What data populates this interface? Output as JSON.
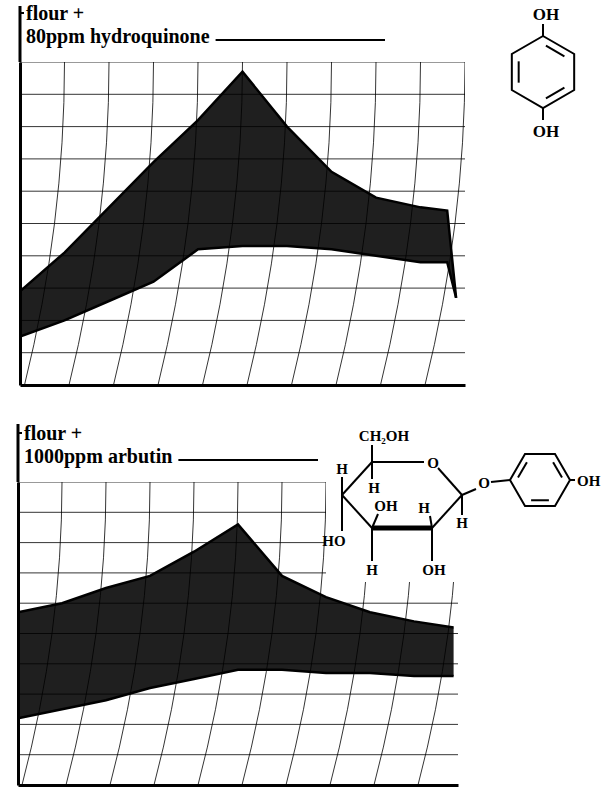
{
  "chart_data": [
    {
      "type": "band",
      "title": "flour + 80ppm hydroquinone",
      "x": [
        0,
        1,
        2,
        3,
        4,
        5,
        6,
        7,
        8,
        9,
        9.6,
        9.8
      ],
      "series": [
        {
          "color": "#000000",
          "values": [
            29,
            41,
            55,
            69,
            82,
            97,
            80,
            66,
            58,
            55,
            54,
            27
          ]
        },
        {
          "color": "#000000",
          "values": [
            15,
            20,
            26,
            32,
            42,
            43,
            43,
            42,
            40,
            38,
            38,
            27
          ]
        }
      ],
      "xlim": [
        0,
        10
      ],
      "ylim": [
        0,
        100
      ],
      "xticks": [
        0,
        1,
        2,
        3,
        4,
        5,
        6,
        7,
        8,
        9,
        10
      ],
      "yticks": [
        0,
        10,
        20,
        30,
        40,
        50,
        60,
        70,
        80,
        90,
        100
      ],
      "grid": true,
      "tick_labels": false,
      "annotations": [
        "OH",
        "OH"
      ]
    },
    {
      "type": "band",
      "title": "flour + 1000ppm arbutin",
      "x": [
        0,
        1,
        2,
        3,
        4,
        5,
        6,
        7,
        8,
        9,
        9.9
      ],
      "series": [
        {
          "color": "#000000",
          "values": [
            57,
            60,
            65,
            69,
            77,
            86,
            69,
            62,
            57,
            54,
            52
          ]
        },
        {
          "color": "#000000",
          "values": [
            22,
            25,
            28,
            32,
            35,
            38,
            38,
            37,
            37,
            36,
            36
          ]
        }
      ],
      "xlim": [
        0,
        10
      ],
      "ylim": [
        0,
        100
      ],
      "xticks": [
        0,
        1,
        2,
        3,
        4,
        5,
        6,
        7,
        8,
        9,
        10
      ],
      "yticks": [
        0,
        10,
        20,
        30,
        40,
        50,
        60,
        70,
        80,
        90,
        100
      ],
      "grid": true,
      "tick_labels": false,
      "annotations": [
        "CH₂OH",
        "O",
        "O",
        "H",
        "H",
        "OH",
        "H",
        "HO",
        "H",
        "H",
        "OH",
        "OH"
      ]
    }
  ]
}
